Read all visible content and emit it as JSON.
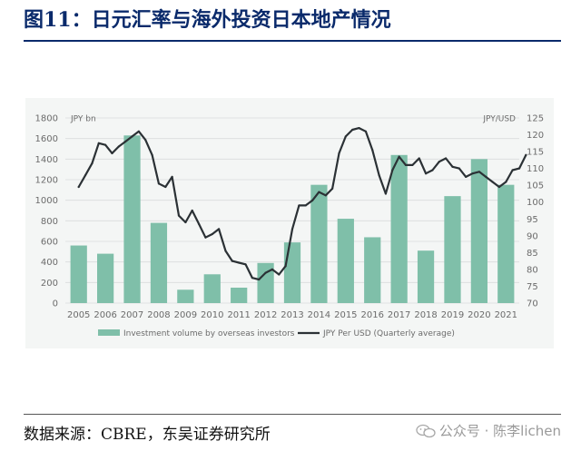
{
  "header": {
    "title": "图11：日元汇率与海外投资日本地产情况"
  },
  "footer": {
    "source": "数据来源：CBRE，东吴证券研究所",
    "watermark": "公众号 · 陈李lichen"
  },
  "colors": {
    "bar": "#7fbfa9",
    "line": "#2b3135",
    "title": "#0a2a6b",
    "axis_text": "#6b6b6b",
    "grid": "#d9dcdb"
  },
  "chart_data": {
    "type": "bar+line",
    "left_axis": {
      "unit_label": "JPY bn",
      "ylim": [
        0,
        1800
      ],
      "ticks": [
        0,
        200,
        400,
        600,
        800,
        1000,
        1200,
        1400,
        1600,
        1800
      ]
    },
    "right_axis": {
      "unit_label": "JPY/USD",
      "ylim": [
        70,
        125
      ],
      "ticks": [
        70,
        75,
        80,
        85,
        90,
        95,
        100,
        105,
        110,
        115,
        120,
        125
      ]
    },
    "categories": [
      "2005",
      "2006",
      "2007",
      "2008",
      "2009",
      "2010",
      "2011",
      "2012",
      "2013",
      "2014",
      "2015",
      "2016",
      "2017",
      "2018",
      "2019",
      "2020",
      "2021"
    ],
    "series": [
      {
        "name": "Investment volume by overseas investors",
        "axis": "left",
        "kind": "bar",
        "values": [
          560,
          480,
          1630,
          780,
          130,
          280,
          150,
          390,
          590,
          1150,
          820,
          640,
          1440,
          510,
          1040,
          1400,
          1150
        ]
      },
      {
        "name": "JPY Per USD (Quarterly average)",
        "axis": "right",
        "kind": "line",
        "x": [
          2005,
          2005.25,
          2005.5,
          2005.75,
          2006,
          2006.25,
          2006.5,
          2006.75,
          2007,
          2007.25,
          2007.5,
          2007.75,
          2008,
          2008.25,
          2008.5,
          2008.75,
          2009,
          2009.25,
          2009.5,
          2009.75,
          2010,
          2010.25,
          2010.5,
          2010.75,
          2011,
          2011.25,
          2011.5,
          2011.75,
          2012,
          2012.25,
          2012.5,
          2012.75,
          2013,
          2013.25,
          2013.5,
          2013.75,
          2014,
          2014.25,
          2014.5,
          2014.75,
          2015,
          2015.25,
          2015.5,
          2015.75,
          2016,
          2016.25,
          2016.5,
          2016.75,
          2017,
          2017.25,
          2017.5,
          2017.75,
          2018,
          2018.25,
          2018.5,
          2018.75,
          2019,
          2019.25,
          2019.5,
          2019.75,
          2020,
          2020.25,
          2020.5,
          2020.75,
          2021,
          2021.25,
          2021.5,
          2021.75
        ],
        "values": [
          104.5,
          108,
          111.5,
          117.5,
          117,
          114.5,
          116.5,
          118,
          119.5,
          121,
          118.5,
          114,
          105.5,
          104.5,
          107.5,
          96,
          94,
          97.5,
          93.5,
          89.5,
          90.5,
          92,
          85.5,
          82.5,
          82,
          81.5,
          77.5,
          77,
          79,
          80,
          78.5,
          81,
          92,
          99,
          99,
          100.5,
          103,
          102,
          104,
          114.5,
          119.5,
          121.5,
          122,
          121,
          115.5,
          108,
          102.5,
          109.5,
          113.5,
          111,
          111,
          113,
          108.5,
          109.5,
          112,
          113,
          110.5,
          110,
          107.5,
          108.5,
          109,
          107.5,
          106,
          104.5,
          106,
          109.5,
          110,
          114
        ]
      }
    ]
  }
}
